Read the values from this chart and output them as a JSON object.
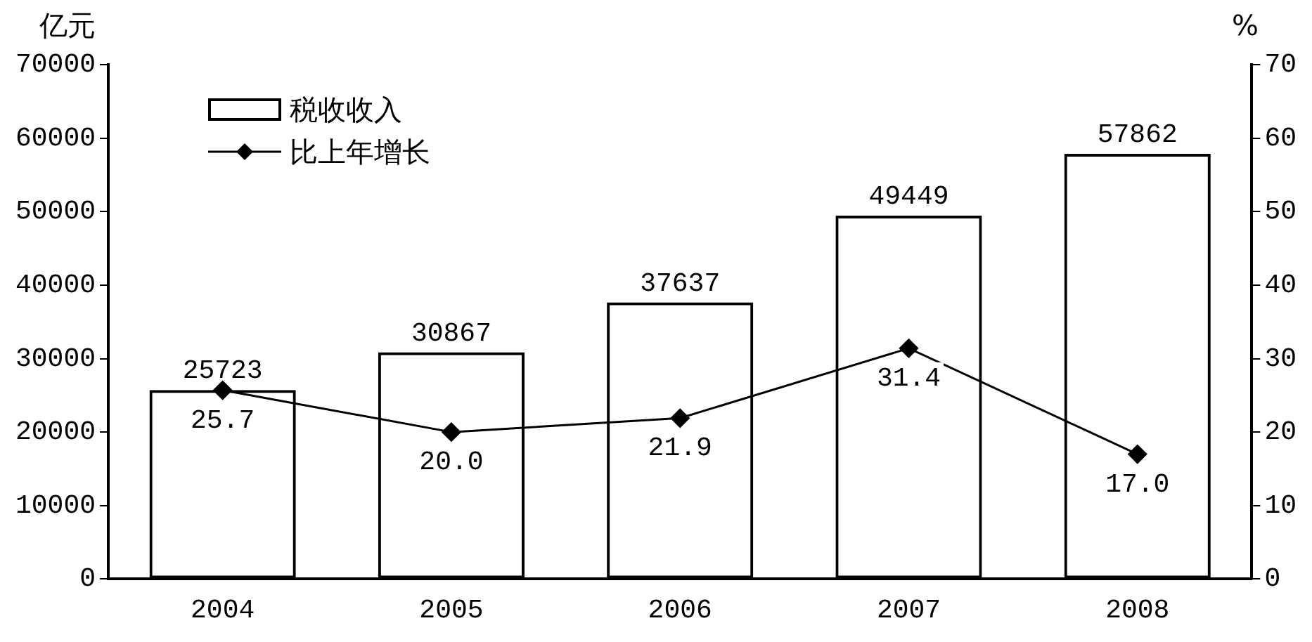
{
  "chart_data": {
    "type": "bar",
    "ylabel": "亿元",
    "y2label": "%",
    "categories": [
      "2004",
      "2005",
      "2006",
      "2007",
      "2008"
    ],
    "series": [
      {
        "name": "税收收入",
        "color": "#000000",
        "values": [
          25723,
          30867,
          37637,
          49449,
          57862
        ],
        "value_labels": [
          "25723",
          "30867",
          "37637",
          "49449",
          "57862"
        ]
      },
      {
        "name": "比上年增长",
        "type": "line",
        "axis": "y2",
        "color": "#000000",
        "marker": "diamond",
        "values": [
          25.7,
          20.0,
          21.9,
          31.4,
          17.0
        ],
        "value_labels": [
          "25.7",
          "20.0",
          "21.9",
          "31.4",
          "17.0"
        ]
      }
    ],
    "ylim": [
      0,
      70000
    ],
    "yticks": [
      0,
      10000,
      20000,
      30000,
      40000,
      50000,
      60000,
      70000
    ],
    "y2lim": [
      0,
      70
    ],
    "y2ticks": [
      0,
      10,
      20,
      30,
      40,
      50,
      60,
      70
    ],
    "grid": false,
    "legend": "top left"
  }
}
